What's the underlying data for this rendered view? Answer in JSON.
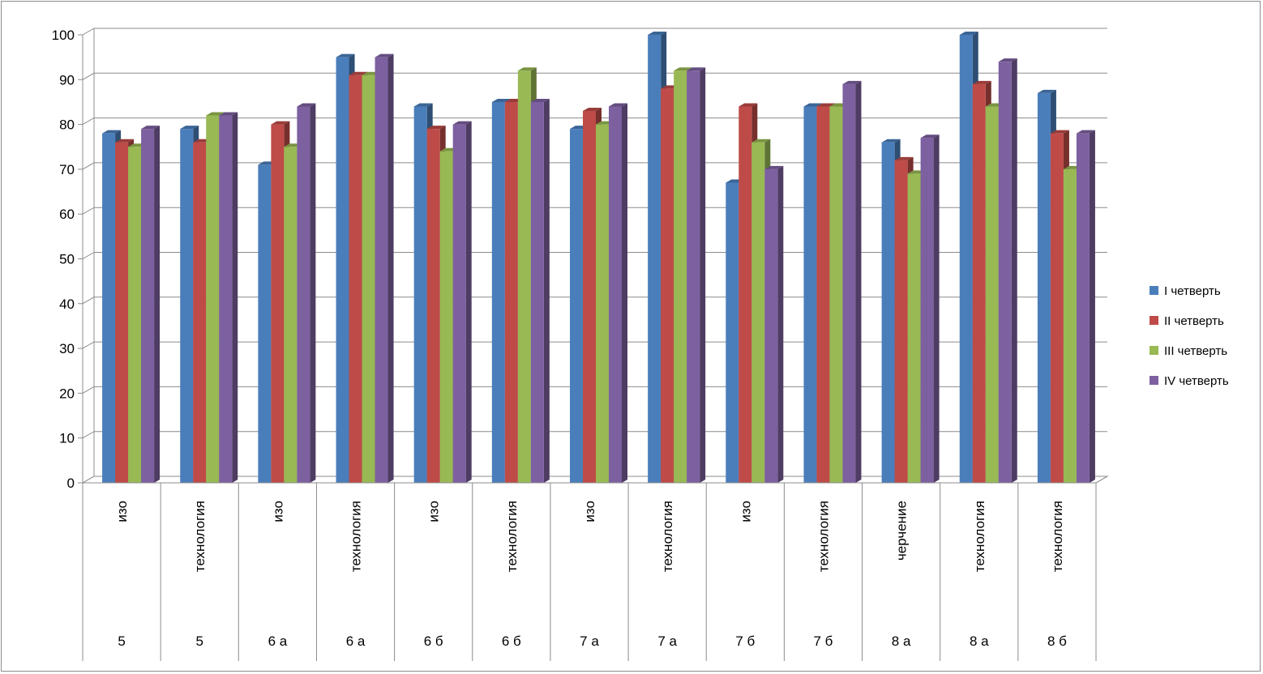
{
  "chart_data": {
    "type": "bar",
    "ylim": [
      0,
      100
    ],
    "yticks": [
      0,
      10,
      20,
      30,
      40,
      50,
      60,
      70,
      80,
      90,
      100
    ],
    "grid": true,
    "legend_position": "right",
    "categories": [
      {
        "subject": "изо",
        "class": "5"
      },
      {
        "subject": "технология",
        "class": "5"
      },
      {
        "subject": "изо",
        "class": "6 а"
      },
      {
        "subject": "технология",
        "class": "6 а"
      },
      {
        "subject": "изо",
        "class": "6 б"
      },
      {
        "subject": "технология",
        "class": "6 б"
      },
      {
        "subject": "изо",
        "class": "7 а"
      },
      {
        "subject": "технология",
        "class": "7 а"
      },
      {
        "subject": "изо",
        "class": "7 б"
      },
      {
        "subject": "технология",
        "class": "7 б"
      },
      {
        "subject": "черчение",
        "class": "8 а"
      },
      {
        "subject": "технология",
        "class": "8 а"
      },
      {
        "subject": "технология",
        "class": "8 б"
      }
    ],
    "series": [
      {
        "name": "I четверть",
        "color": "#4a7ebb",
        "values": [
          78,
          79,
          71,
          95,
          84,
          85,
          79,
          100,
          67,
          84,
          76,
          100,
          87
        ]
      },
      {
        "name": "II четверть",
        "color": "#be4b48",
        "values": [
          76,
          76,
          80,
          91,
          79,
          85,
          83,
          88,
          84,
          84,
          72,
          89,
          78
        ]
      },
      {
        "name": "III четверть",
        "color": "#98b954",
        "values": [
          75,
          82,
          75,
          91,
          74,
          92,
          80,
          92,
          76,
          84,
          69,
          84,
          70
        ]
      },
      {
        "name": "IV четверть",
        "color": "#7d60a0",
        "values": [
          79,
          82,
          84,
          95,
          80,
          85,
          84,
          92,
          70,
          89,
          77,
          94,
          78
        ]
      }
    ]
  }
}
